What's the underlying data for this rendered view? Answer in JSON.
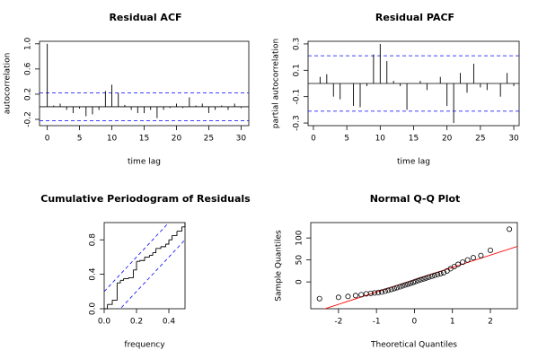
{
  "chart_data": [
    {
      "type": "stem",
      "title": "Residual ACF",
      "xlabel": "time lag",
      "ylabel": "autocorrelation",
      "x": [
        0,
        1,
        2,
        3,
        4,
        5,
        6,
        7,
        8,
        9,
        10,
        11,
        12,
        13,
        14,
        15,
        16,
        17,
        18,
        19,
        20,
        21,
        22,
        23,
        24,
        25,
        26,
        27,
        28,
        29,
        30
      ],
      "values": [
        1.0,
        0.02,
        0.05,
        -0.05,
        -0.1,
        -0.03,
        -0.15,
        -0.12,
        -0.05,
        0.25,
        0.35,
        0.22,
        0.03,
        -0.05,
        -0.1,
        -0.1,
        -0.05,
        -0.18,
        -0.05,
        -0.02,
        0.05,
        -0.02,
        0.15,
        0.02,
        0.05,
        -0.1,
        -0.05,
        0.02,
        -0.05,
        0.05,
        -0.02
      ],
      "ci": 0.22,
      "ci_color": "#0000ff",
      "color": "#000000",
      "xlim": [
        -1.2,
        31.2
      ],
      "ylim": [
        -0.3,
        1.04
      ],
      "xticks": [
        0,
        5,
        10,
        15,
        20,
        25,
        30
      ],
      "yticks": [
        -0.2,
        0.2,
        0.6,
        {
          "value": 1,
          "label": "1.0"
        }
      ]
    },
    {
      "type": "stem",
      "title": "Residual PACF",
      "xlabel": "time lag",
      "ylabel": "partial autocorrelation",
      "x": [
        1,
        2,
        3,
        4,
        5,
        6,
        7,
        8,
        9,
        10,
        11,
        12,
        13,
        14,
        15,
        16,
        17,
        18,
        19,
        20,
        21,
        22,
        23,
        24,
        25,
        26,
        27,
        28,
        29,
        30
      ],
      "values": [
        0.05,
        0.07,
        -0.1,
        -0.12,
        0,
        -0.17,
        -0.18,
        -0.02,
        0.22,
        0.3,
        0.17,
        0.02,
        -0.02,
        -0.2,
        0,
        0.02,
        -0.05,
        0,
        0.05,
        -0.17,
        -0.3,
        0.08,
        -0.07,
        0.15,
        -0.03,
        -0.05,
        0,
        -0.1,
        0.08,
        -0.02
      ],
      "ci": 0.21,
      "ci_color": "#0000ff",
      "color": "#000000",
      "xlim": [
        -0.8,
        30.8
      ],
      "ylim": [
        -0.32,
        0.32
      ],
      "xticks": [
        0,
        5,
        10,
        15,
        20,
        25,
        30
      ],
      "yticks": [
        -0.3,
        -0.1,
        0.1,
        0.3
      ]
    },
    {
      "type": "step",
      "title": "Cumulative Periodogram of Residuals",
      "xlabel": "frequency",
      "x": [
        0,
        0.02,
        0.05,
        0.08,
        0.1,
        0.12,
        0.15,
        0.18,
        0.2,
        0.22,
        0.25,
        0.28,
        0.3,
        0.32,
        0.35,
        0.38,
        0.4,
        0.42,
        0.45,
        0.48,
        0.5
      ],
      "values": [
        0,
        0.05,
        0.1,
        0.3,
        0.33,
        0.35,
        0.36,
        0.45,
        0.55,
        0.56,
        0.6,
        0.62,
        0.65,
        0.7,
        0.72,
        0.75,
        0.8,
        0.85,
        0.9,
        0.95,
        1.0
      ],
      "ci": 0.2,
      "ci_color": "#0000ff",
      "color": "#000000",
      "xlim": [
        0,
        0.5
      ],
      "ylim": [
        0,
        1
      ],
      "xticks": [
        {
          "value": 0,
          "label": "0.0"
        },
        0.2,
        0.4
      ],
      "yticks": [
        {
          "value": 0,
          "label": "0.0"
        },
        0.4,
        0.8
      ]
    },
    {
      "type": "scatter",
      "title": "Normal Q-Q Plot",
      "xlabel": "Theoretical Quantiles",
      "ylabel": "Sample Quantiles",
      "x": [
        -2.5,
        -2.0,
        -1.75,
        -1.55,
        -1.4,
        -1.27,
        -1.15,
        -1.05,
        -0.95,
        -0.86,
        -0.77,
        -0.69,
        -0.61,
        -0.53,
        -0.46,
        -0.38,
        -0.31,
        -0.24,
        -0.17,
        -0.1,
        -0.03,
        0.03,
        0.1,
        0.17,
        0.24,
        0.31,
        0.38,
        0.46,
        0.53,
        0.61,
        0.69,
        0.77,
        0.86,
        0.95,
        1.05,
        1.15,
        1.27,
        1.4,
        1.55,
        1.75,
        2.0,
        2.5
      ],
      "values": [
        -38,
        -35,
        -33,
        -31,
        -29,
        -27,
        -26,
        -25,
        -24,
        -23,
        -21,
        -19,
        -17,
        -15,
        -13,
        -11,
        -9,
        -7,
        -5,
        -3,
        -1,
        1,
        3,
        5,
        7,
        9,
        11,
        13,
        15,
        17,
        19,
        21,
        25,
        30,
        35,
        40,
        45,
        50,
        55,
        60,
        72,
        120
      ],
      "line": {
        "intercept": 5,
        "slope": 28,
        "color": "#ff0000"
      },
      "color": "#000000",
      "xlim": [
        -2.73,
        2.71
      ],
      "ylim": [
        -61,
        135
      ],
      "xticks": [
        -2,
        -1,
        0,
        1,
        2
      ],
      "yticks": [
        0,
        50,
        100
      ]
    }
  ]
}
